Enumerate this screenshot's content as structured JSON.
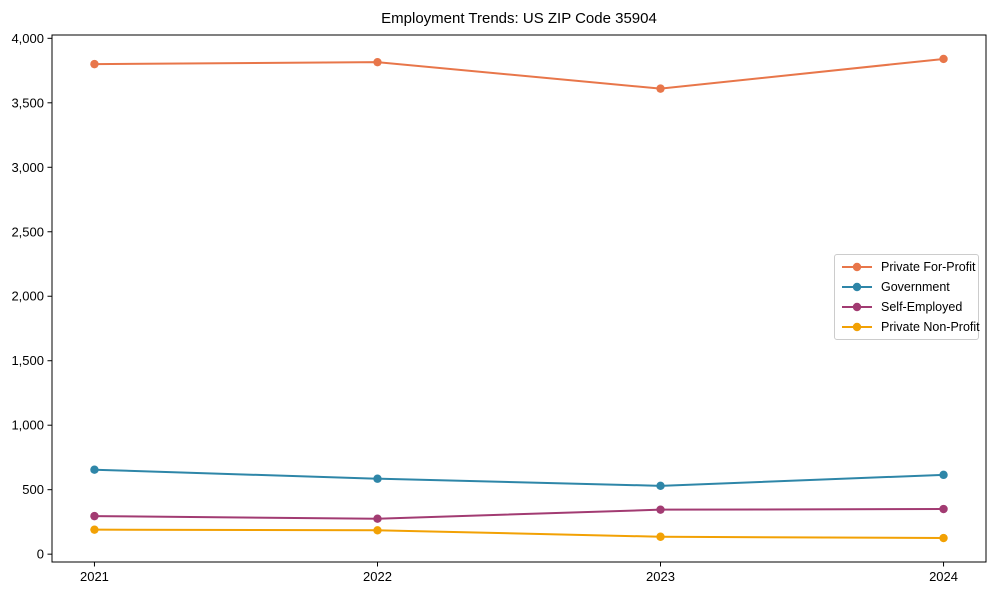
{
  "chart_data": {
    "type": "line",
    "title": "Employment Trends: US ZIP Code 35904",
    "categories": [
      "2021",
      "2022",
      "2023",
      "2024"
    ],
    "series": [
      {
        "name": "Private For-Profit",
        "color": "#E8764A",
        "values": [
          3800,
          3815,
          3610,
          3840
        ]
      },
      {
        "name": "Government",
        "color": "#2E86A8",
        "values": [
          655,
          585,
          530,
          615
        ]
      },
      {
        "name": "Self-Employed",
        "color": "#A23B72",
        "values": [
          295,
          275,
          345,
          350
        ]
      },
      {
        "name": "Private Non-Profit",
        "color": "#F2A104",
        "values": [
          190,
          185,
          135,
          125
        ]
      }
    ],
    "xlabel": "",
    "ylabel": "",
    "ylim": [
      0,
      4000
    ],
    "ytick_step": 500,
    "ytick_labels": [
      "0",
      "500",
      "1,000",
      "1,500",
      "2,000",
      "2,500",
      "3,000",
      "3,500",
      "4,000"
    ],
    "grid": false,
    "legend_position": "center-right",
    "background_color": "#ffffff",
    "spine_color": "#000000",
    "text_color": "#000000"
  }
}
